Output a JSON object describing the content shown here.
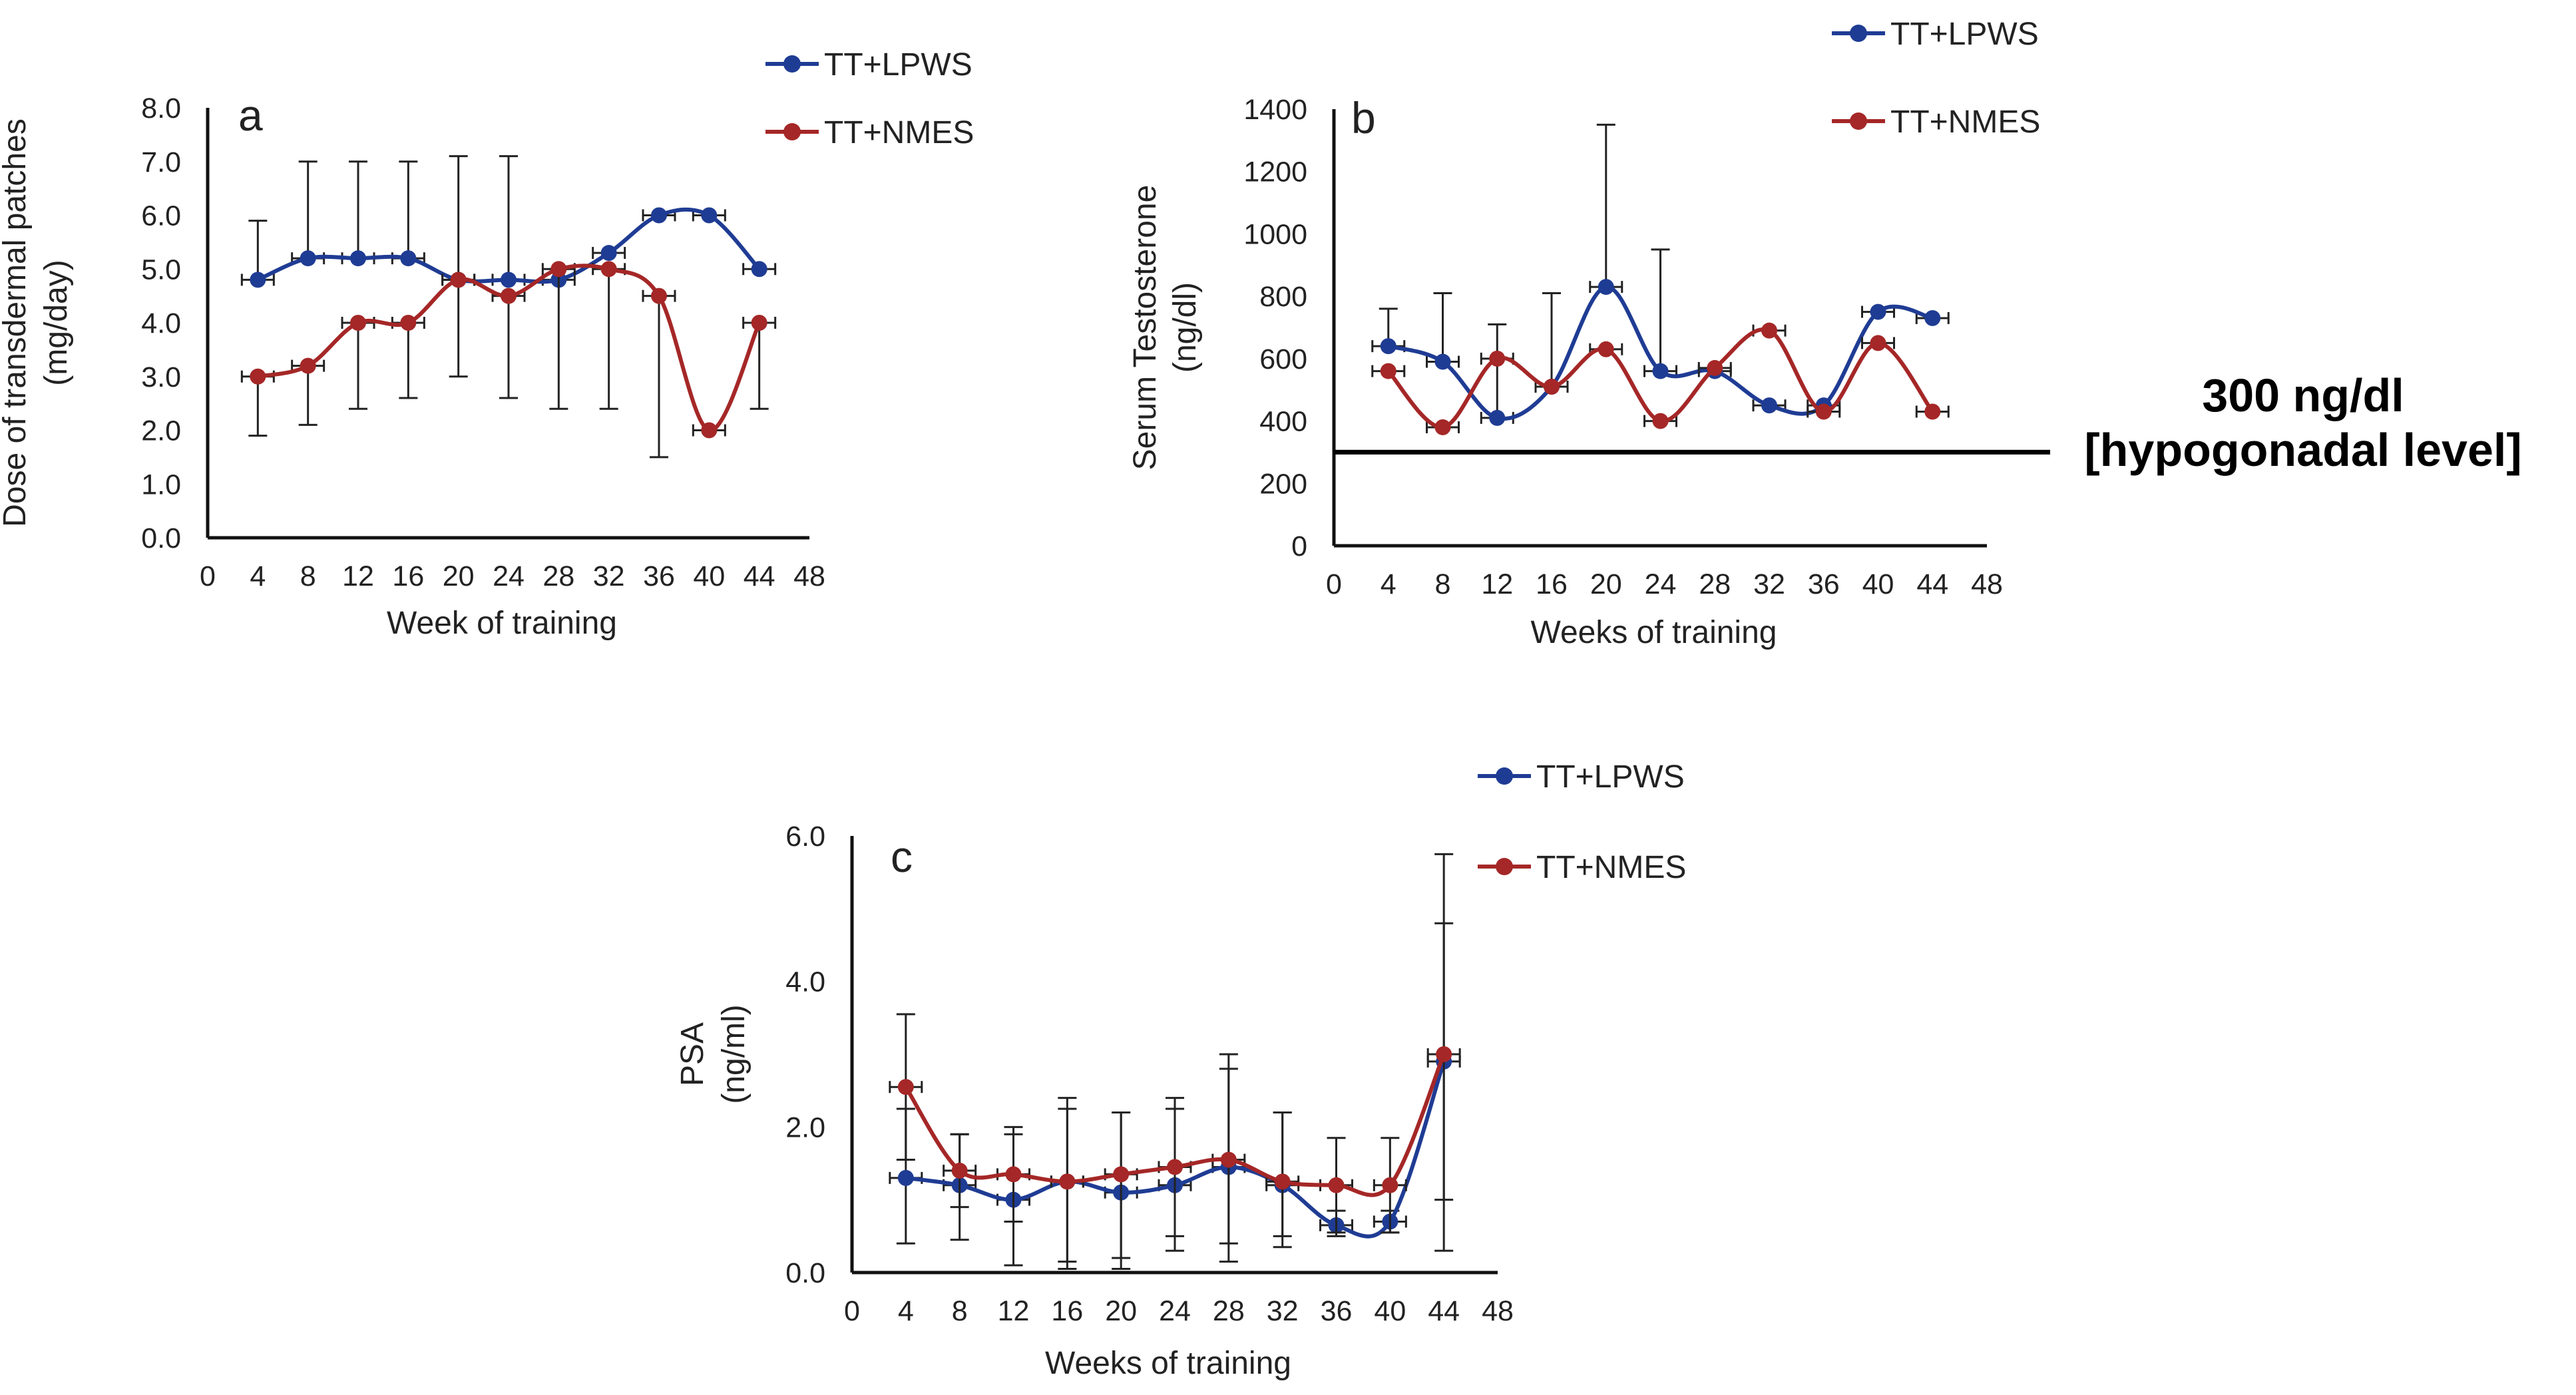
{
  "chart_data": [
    {
      "id": "a",
      "type": "line",
      "panel_label": "a",
      "xlabel": "Week of training",
      "ylabel": [
        "Dose of transdermal patches",
        "(mg/day)"
      ],
      "xlim": [
        0,
        48
      ],
      "ylim": [
        0,
        8
      ],
      "xticks": [
        "0",
        "4",
        "8",
        "12",
        "16",
        "20",
        "24",
        "28",
        "32",
        "36",
        "40",
        "44",
        "48"
      ],
      "yticks": [
        "0.0",
        "1.0",
        "2.0",
        "3.0",
        "4.0",
        "5.0",
        "6.0",
        "7.0",
        "8.0"
      ],
      "legend": [
        "TT+LPWS",
        "TT+NMES"
      ],
      "series": [
        {
          "name": "TT+LPWS",
          "color": "#1f3c94",
          "x": [
            4,
            8,
            12,
            16,
            20,
            24,
            28,
            32,
            36,
            40,
            44
          ],
          "y": [
            4.8,
            5.2,
            5.2,
            5.2,
            4.8,
            4.8,
            4.8,
            5.3,
            6.0,
            6.0,
            5.0
          ],
          "err_upper": [
            5.9,
            7.0,
            7.0,
            7.0,
            7.1,
            7.1,
            5.0,
            5.3,
            6.0,
            6.0,
            5.0
          ]
        },
        {
          "name": "TT+NMES",
          "color": "#a52727",
          "x": [
            4,
            8,
            12,
            16,
            20,
            24,
            28,
            32,
            36,
            40,
            44
          ],
          "y": [
            3.0,
            3.2,
            4.0,
            4.0,
            4.8,
            4.5,
            5.0,
            5.0,
            4.5,
            2.0,
            4.0
          ],
          "err_lower": [
            1.9,
            2.1,
            2.4,
            2.6,
            3.0,
            2.6,
            2.4,
            2.4,
            1.5,
            2.0,
            2.4
          ]
        }
      ]
    },
    {
      "id": "b",
      "type": "line",
      "panel_label": "b",
      "xlabel": "Weeks of training",
      "ylabel": [
        "Serum Testosterone",
        "(ng/dl)"
      ],
      "xlim": [
        0,
        48
      ],
      "ylim": [
        0,
        1400
      ],
      "xticks": [
        "0",
        "4",
        "8",
        "12",
        "16",
        "20",
        "24",
        "28",
        "32",
        "36",
        "40",
        "44",
        "48"
      ],
      "yticks": [
        "0",
        "200",
        "400",
        "600",
        "800",
        "1000",
        "1200",
        "1400"
      ],
      "legend": [
        "TT+LPWS",
        "TT+NMES"
      ],
      "reference_line": {
        "y": 300,
        "label": [
          "300 ng/dl",
          "[hypogonadal level]"
        ]
      },
      "series": [
        {
          "name": "TT+LPWS",
          "color": "#1f3c94",
          "x": [
            4,
            8,
            12,
            16,
            20,
            24,
            28,
            32,
            36,
            40,
            44
          ],
          "y": [
            640,
            590,
            410,
            510,
            830,
            560,
            560,
            450,
            450,
            750,
            730
          ],
          "err_upper": [
            760,
            810,
            710,
            810,
            1350,
            950,
            560,
            450,
            450,
            750,
            730
          ]
        },
        {
          "name": "TT+NMES",
          "color": "#a52727",
          "x": [
            4,
            8,
            12,
            16,
            20,
            24,
            28,
            32,
            36,
            40,
            44
          ],
          "y": [
            560,
            380,
            600,
            510,
            630,
            400,
            570,
            690,
            430,
            650,
            430
          ],
          "err_lower": [
            560,
            380,
            600,
            510,
            630,
            400,
            570,
            690,
            430,
            650,
            430
          ]
        }
      ]
    },
    {
      "id": "c",
      "type": "line",
      "panel_label": "c",
      "xlabel": "Weeks of training",
      "ylabel": [
        "PSA",
        "(ng/ml)"
      ],
      "xlim": [
        0,
        48
      ],
      "ylim": [
        0,
        6
      ],
      "xticks": [
        "0",
        "4",
        "8",
        "12",
        "16",
        "20",
        "24",
        "28",
        "32",
        "36",
        "40",
        "44",
        "48"
      ],
      "yticks": [
        "0.0",
        "2.0",
        "4.0",
        "6.0"
      ],
      "legend": [
        "TT+LPWS",
        "TT+NMES"
      ],
      "series": [
        {
          "name": "TT+LPWS",
          "color": "#1f3c94",
          "x": [
            4,
            8,
            12,
            16,
            20,
            24,
            28,
            32,
            36,
            40,
            44
          ],
          "y": [
            1.3,
            1.2,
            1.0,
            1.25,
            1.1,
            1.2,
            1.45,
            1.2,
            0.65,
            0.7,
            2.9
          ],
          "err_lower": [
            0.4,
            0.45,
            0.1,
            0.05,
            0.05,
            0.3,
            0.4,
            0.35,
            0.5,
            0.55,
            0.3
          ],
          "err_upper": [
            2.25,
            1.9,
            1.9,
            2.25,
            2.2,
            2.25,
            2.8,
            2.2,
            0.85,
            0.85,
            4.8
          ]
        },
        {
          "name": "TT+NMES",
          "color": "#a52727",
          "x": [
            4,
            8,
            12,
            16,
            20,
            24,
            28,
            32,
            36,
            40,
            44
          ],
          "y": [
            2.55,
            1.4,
            1.35,
            1.25,
            1.35,
            1.45,
            1.55,
            1.25,
            1.2,
            1.2,
            3.0
          ],
          "err_lower": [
            1.55,
            0.9,
            0.7,
            0.15,
            0.2,
            0.5,
            0.15,
            0.5,
            0.55,
            0.55,
            1.0
          ],
          "err_upper": [
            3.55,
            1.9,
            2.0,
            2.4,
            2.2,
            2.4,
            3.0,
            2.2,
            1.85,
            1.85,
            5.75
          ]
        }
      ]
    }
  ]
}
